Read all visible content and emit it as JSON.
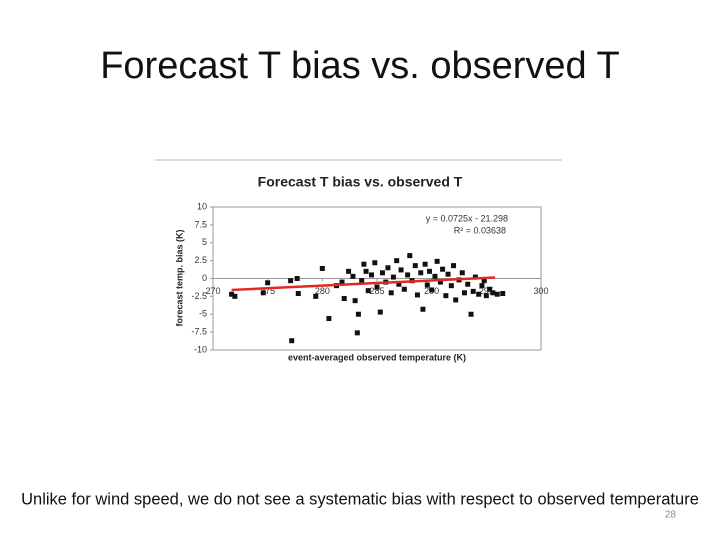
{
  "slide_title": "Forecast T bias vs. observed T",
  "caption": "Unlike for wind speed, we do not see a systematic bias with respect to observed temperature",
  "page_number": "28",
  "chart_data": {
    "type": "scatter",
    "title": "Forecast T bias vs. observed T",
    "x_label": "event-averaged observed temperature (K)",
    "y_label": "forecast temp. bias (K)",
    "x": [
      271.7,
      272.0,
      274.6,
      275.0,
      277.1,
      277.7,
      277.2,
      277.8,
      279.4,
      280.0,
      280.6,
      281.3,
      281.8,
      282.0,
      282.4,
      282.8,
      283.0,
      283.2,
      283.3,
      283.6,
      283.8,
      284.0,
      284.2,
      284.5,
      284.8,
      285.0,
      285.3,
      285.5,
      285.8,
      286.0,
      286.3,
      286.5,
      286.8,
      287.0,
      287.2,
      287.5,
      287.8,
      288.0,
      288.2,
      288.5,
      288.7,
      289.0,
      289.2,
      289.4,
      289.6,
      289.8,
      290.0,
      290.3,
      290.5,
      290.8,
      291.0,
      291.3,
      291.5,
      291.8,
      292.0,
      292.2,
      292.5,
      292.8,
      293.0,
      293.3,
      293.6,
      293.8,
      294.0,
      294.3,
      294.6,
      294.8,
      295.0,
      295.3,
      295.6,
      296.0,
      296.5
    ],
    "values": [
      -2.2,
      -2.5,
      -2.0,
      -0.6,
      -0.3,
      0.0,
      -8.7,
      -2.1,
      -2.5,
      1.4,
      -5.6,
      -1.0,
      -0.5,
      -2.8,
      1.0,
      0.3,
      -3.1,
      -7.6,
      -5.0,
      -0.3,
      2.0,
      1.0,
      -1.7,
      0.5,
      2.2,
      -1.2,
      -4.7,
      0.8,
      -0.5,
      1.5,
      -2.0,
      0.2,
      2.5,
      -0.8,
      1.2,
      -1.5,
      0.5,
      3.2,
      -0.3,
      1.8,
      -2.3,
      0.8,
      -4.3,
      2.0,
      -0.9,
      1.0,
      -1.6,
      0.3,
      2.4,
      -0.5,
      1.3,
      -2.4,
      0.6,
      -1.0,
      1.8,
      -3.0,
      -0.2,
      0.8,
      -2.0,
      -0.8,
      -5.0,
      -1.8,
      0.2,
      -2.2,
      -1.0,
      -0.3,
      -2.4,
      -1.5,
      -2.0,
      -2.2,
      -2.1
    ],
    "color": "#111111",
    "xlim": [
      270,
      300
    ],
    "xticks": [
      270,
      275,
      280,
      285,
      290,
      295,
      300
    ],
    "ylim": [
      -10,
      10
    ],
    "yticks": [
      -10,
      -7.5,
      -5,
      -2.5,
      0,
      2.5,
      5,
      7.5,
      10
    ],
    "trendline": {
      "equation": "y = 0.0725x - 21.298",
      "r_squared": "R² = 0.03638",
      "slope": 0.0725,
      "intercept": -21.298,
      "x_range": [
        271.7,
        295.8
      ],
      "color": "#e02a20"
    }
  }
}
